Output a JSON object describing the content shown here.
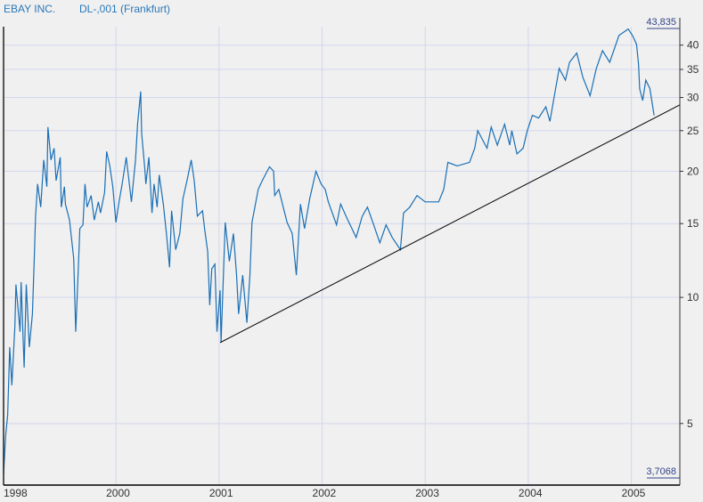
{
  "header": {
    "company": "EBAY INC.",
    "instrument": "DL-,001 (Frankfurt)"
  },
  "chart_data": {
    "type": "line",
    "y_scale": "log",
    "ylim": [
      3.7068,
      43.835
    ],
    "xlim": [
      1998.91,
      2005.47
    ],
    "grid": true,
    "y_ticks": [
      5,
      10,
      15,
      20,
      25,
      30,
      35,
      40
    ],
    "x_ticks": [
      {
        "label": "1998",
        "value": 1998.91
      },
      {
        "label": "2000",
        "value": 2000
      },
      {
        "label": "2001",
        "value": 2001
      },
      {
        "label": "2002",
        "value": 2002
      },
      {
        "label": "2003",
        "value": 2003
      },
      {
        "label": "2004",
        "value": 2004
      },
      {
        "label": "2005",
        "value": 2005
      }
    ],
    "max_label": "43,835",
    "min_label": "3,7068",
    "colors": {
      "series": "#1a6fb5",
      "trendline": "#000000",
      "grid": "#d2d6ec",
      "background": "#f0f0f0"
    },
    "trendline": [
      [
        2001.01,
        7.8
      ],
      [
        2005.47,
        28.8
      ]
    ],
    "series": [
      {
        "values": [
          [
            1998.91,
            3.78
          ],
          [
            1998.93,
            4.67
          ],
          [
            1998.95,
            5.23
          ],
          [
            1998.97,
            7.61
          ],
          [
            1998.99,
            6.17
          ],
          [
            1999.02,
            8.52
          ],
          [
            1999.03,
            10.73
          ],
          [
            1999.07,
            8.28
          ],
          [
            1999.08,
            10.88
          ],
          [
            1999.11,
            6.8
          ],
          [
            1999.13,
            10.73
          ],
          [
            1999.16,
            7.61
          ],
          [
            1999.19,
            9.13
          ],
          [
            1999.21,
            12.86
          ],
          [
            1999.22,
            15.63
          ],
          [
            1999.24,
            18.65
          ],
          [
            1999.27,
            16.42
          ],
          [
            1999.3,
            21.28
          ],
          [
            1999.33,
            18.37
          ],
          [
            1999.34,
            25.5
          ],
          [
            1999.37,
            21.28
          ],
          [
            1999.4,
            22.7
          ],
          [
            1999.42,
            19.0
          ],
          [
            1999.46,
            21.6
          ],
          [
            1999.47,
            16.42
          ],
          [
            1999.5,
            18.37
          ],
          [
            1999.51,
            16.7
          ],
          [
            1999.55,
            15.3
          ],
          [
            1999.59,
            12.4
          ],
          [
            1999.61,
            8.28
          ],
          [
            1999.63,
            10.88
          ],
          [
            1999.65,
            14.6
          ],
          [
            1999.68,
            14.9
          ],
          [
            1999.7,
            18.65
          ],
          [
            1999.72,
            16.42
          ],
          [
            1999.76,
            17.5
          ],
          [
            1999.79,
            15.3
          ],
          [
            1999.83,
            16.9
          ],
          [
            1999.85,
            15.9
          ],
          [
            1999.89,
            17.8
          ],
          [
            1999.91,
            22.3
          ],
          [
            1999.94,
            20.6
          ],
          [
            1999.97,
            18.37
          ],
          [
            2000.0,
            15.1
          ],
          [
            2000.03,
            16.9
          ],
          [
            2000.06,
            18.65
          ],
          [
            2000.1,
            21.6
          ],
          [
            2000.15,
            16.9
          ],
          [
            2000.19,
            21.28
          ],
          [
            2000.21,
            25.9
          ],
          [
            2000.24,
            31.0
          ],
          [
            2000.25,
            24.6
          ],
          [
            2000.28,
            20.3
          ],
          [
            2000.29,
            18.65
          ],
          [
            2000.32,
            21.6
          ],
          [
            2000.35,
            15.9
          ],
          [
            2000.37,
            18.65
          ],
          [
            2000.4,
            16.42
          ],
          [
            2000.42,
            19.6
          ],
          [
            2000.46,
            16.7
          ],
          [
            2000.49,
            14.2
          ],
          [
            2000.52,
            11.8
          ],
          [
            2000.54,
            16.1
          ],
          [
            2000.58,
            13.0
          ],
          [
            2000.62,
            14.2
          ],
          [
            2000.65,
            17.2
          ],
          [
            2000.69,
            19.0
          ],
          [
            2000.73,
            21.28
          ],
          [
            2000.76,
            19.0
          ],
          [
            2000.79,
            15.63
          ],
          [
            2000.84,
            16.1
          ],
          [
            2000.86,
            14.6
          ],
          [
            2000.89,
            12.86
          ],
          [
            2000.91,
            9.58
          ],
          [
            2000.93,
            11.7
          ],
          [
            2000.96,
            12.0
          ],
          [
            2000.98,
            8.28
          ],
          [
            2001.01,
            10.4
          ],
          [
            2001.02,
            7.8
          ],
          [
            2001.06,
            15.1
          ],
          [
            2001.1,
            12.2
          ],
          [
            2001.14,
            14.2
          ],
          [
            2001.17,
            11.3
          ],
          [
            2001.19,
            9.13
          ],
          [
            2001.23,
            11.3
          ],
          [
            2001.27,
            8.7
          ],
          [
            2001.3,
            11.3
          ],
          [
            2001.32,
            15.1
          ],
          [
            2001.38,
            18.1
          ],
          [
            2001.42,
            19.0
          ],
          [
            2001.49,
            20.5
          ],
          [
            2001.53,
            20.0
          ],
          [
            2001.54,
            17.5
          ],
          [
            2001.58,
            18.1
          ],
          [
            2001.66,
            15.1
          ],
          [
            2001.71,
            14.2
          ],
          [
            2001.75,
            11.3
          ],
          [
            2001.79,
            16.7
          ],
          [
            2001.83,
            14.6
          ],
          [
            2001.88,
            17.2
          ],
          [
            2001.94,
            20.0
          ],
          [
            2001.99,
            18.65
          ],
          [
            2002.03,
            18.1
          ],
          [
            2002.06,
            16.9
          ],
          [
            2002.14,
            14.9
          ],
          [
            2002.18,
            16.7
          ],
          [
            2002.25,
            15.3
          ],
          [
            2002.33,
            13.9
          ],
          [
            2002.39,
            15.63
          ],
          [
            2002.44,
            16.42
          ],
          [
            2002.5,
            14.9
          ],
          [
            2002.56,
            13.5
          ],
          [
            2002.62,
            14.9
          ],
          [
            2002.68,
            13.9
          ],
          [
            2002.76,
            13.0
          ],
          [
            2002.79,
            15.9
          ],
          [
            2002.85,
            16.42
          ],
          [
            2002.92,
            17.5
          ],
          [
            2003.0,
            16.9
          ],
          [
            2003.08,
            16.9
          ],
          [
            2003.13,
            16.9
          ],
          [
            2003.18,
            18.1
          ],
          [
            2003.22,
            21.0
          ],
          [
            2003.31,
            20.6
          ],
          [
            2003.43,
            21.0
          ],
          [
            2003.48,
            22.7
          ],
          [
            2003.51,
            25.0
          ],
          [
            2003.6,
            22.7
          ],
          [
            2003.64,
            25.5
          ],
          [
            2003.7,
            23.1
          ],
          [
            2003.77,
            25.9
          ],
          [
            2003.82,
            23.1
          ],
          [
            2003.84,
            25.0
          ],
          [
            2003.89,
            22.0
          ],
          [
            2003.95,
            22.7
          ],
          [
            2003.99,
            25.0
          ],
          [
            2004.04,
            27.2
          ],
          [
            2004.1,
            26.8
          ],
          [
            2004.17,
            28.5
          ],
          [
            2004.21,
            26.3
          ],
          [
            2004.26,
            31.0
          ],
          [
            2004.3,
            35.2
          ],
          [
            2004.36,
            33.0
          ],
          [
            2004.4,
            36.4
          ],
          [
            2004.47,
            38.3
          ],
          [
            2004.53,
            33.5
          ],
          [
            2004.6,
            30.3
          ],
          [
            2004.66,
            35.2
          ],
          [
            2004.72,
            38.8
          ],
          [
            2004.79,
            36.4
          ],
          [
            2004.88,
            42.2
          ],
          [
            2004.97,
            43.7
          ],
          [
            2005.01,
            42.2
          ],
          [
            2005.05,
            40.2
          ],
          [
            2005.07,
            35.9
          ],
          [
            2005.08,
            31.5
          ],
          [
            2005.11,
            29.5
          ],
          [
            2005.14,
            33.0
          ],
          [
            2005.18,
            31.5
          ],
          [
            2005.22,
            27.2
          ]
        ]
      }
    ]
  }
}
